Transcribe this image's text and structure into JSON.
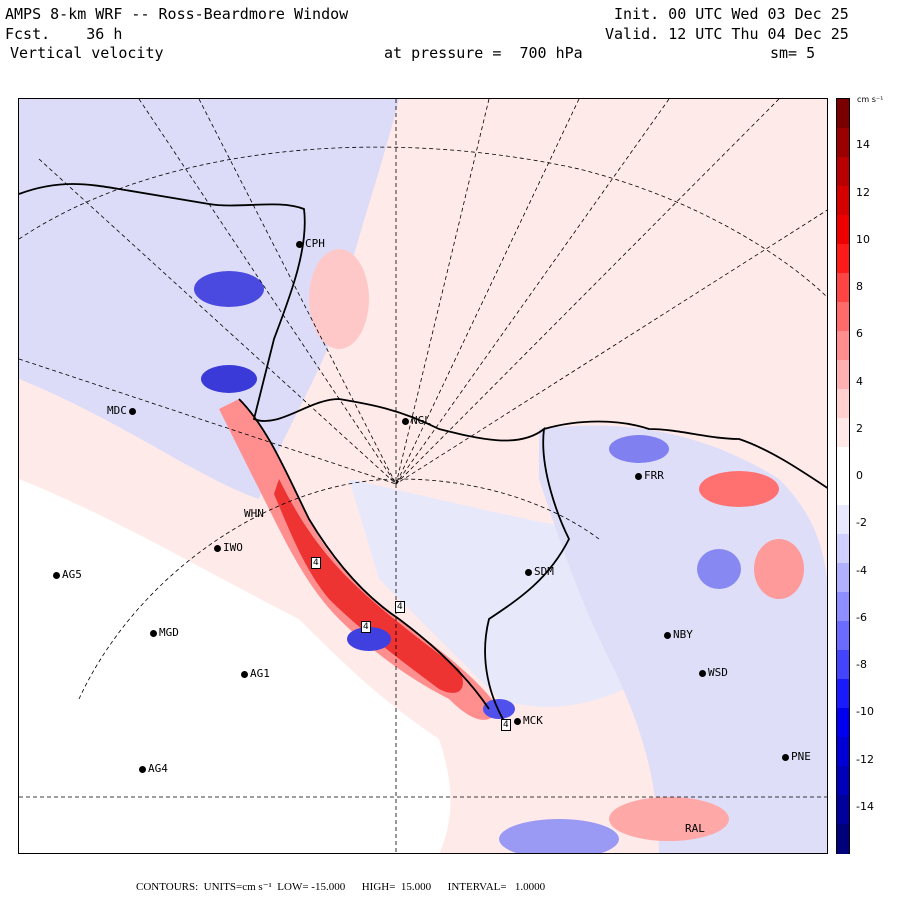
{
  "header": {
    "title": "AMPS 8-km WRF -- Ross-Beardmore Window",
    "init": "Init. 00 UTC Wed 03 Dec 25",
    "forecast": "Fcst.    36 h",
    "valid": "Valid. 12 UTC Thu 04 Dec 25",
    "field": "Vertical velocity",
    "pressure": "at pressure =  700 hPa",
    "smoothing": "sm= 5"
  },
  "stations": [
    {
      "id": "CPH",
      "label": "CPH"
    },
    {
      "id": "MDC",
      "label": "MDC"
    },
    {
      "id": "NGL",
      "label": "NGL"
    },
    {
      "id": "FRR",
      "label": "FRR"
    },
    {
      "id": "WHN",
      "label": "WHN"
    },
    {
      "id": "IWO",
      "label": "IWO"
    },
    {
      "id": "AG5",
      "label": "AG5"
    },
    {
      "id": "SDM",
      "label": "SDM"
    },
    {
      "id": "MGD",
      "label": "MGD"
    },
    {
      "id": "NBY",
      "label": "NBY"
    },
    {
      "id": "AG1",
      "label": "AG1"
    },
    {
      "id": "WSD",
      "label": "WSD"
    },
    {
      "id": "MCK",
      "label": "MCK"
    },
    {
      "id": "PNE",
      "label": "PNE"
    },
    {
      "id": "AG4",
      "label": "AG4"
    },
    {
      "id": "RAL",
      "label": "RAL"
    }
  ],
  "contour_labels": [
    "4",
    "4",
    "4",
    "4"
  ],
  "colorbar": {
    "units": "cm s⁻¹",
    "ticks": [
      "14",
      "12",
      "10",
      "8",
      "6",
      "4",
      "2",
      "0",
      "-2",
      "-4",
      "-6",
      "-8",
      "-10",
      "-12",
      "-14"
    ],
    "colors_top_to_bottom": [
      "#7a0000",
      "#9a0000",
      "#b80000",
      "#d40000",
      "#ee0000",
      "#ff1a1a",
      "#ff4444",
      "#ff6b6b",
      "#ff8e8e",
      "#ffb0b0",
      "#ffd0d0",
      "#ffe8e8",
      "#ffffff",
      "#ffffff",
      "#e8e8ff",
      "#d0d0ff",
      "#b0b0ff",
      "#8e8eff",
      "#6b6bff",
      "#4444ff",
      "#1a1aff",
      "#0000ee",
      "#0000d4",
      "#0000b8",
      "#00009a",
      "#00007a"
    ]
  },
  "footer": "CONTOURS:  UNITS=cm s⁻¹  LOW= -15.000      HIGH=  15.000      INTERVAL=   1.0000",
  "colors": {
    "positive": "#ff6b6b",
    "negative": "#6b6bff",
    "light_positive": "#ffe8e8",
    "light_negative": "#e6e6fa"
  }
}
